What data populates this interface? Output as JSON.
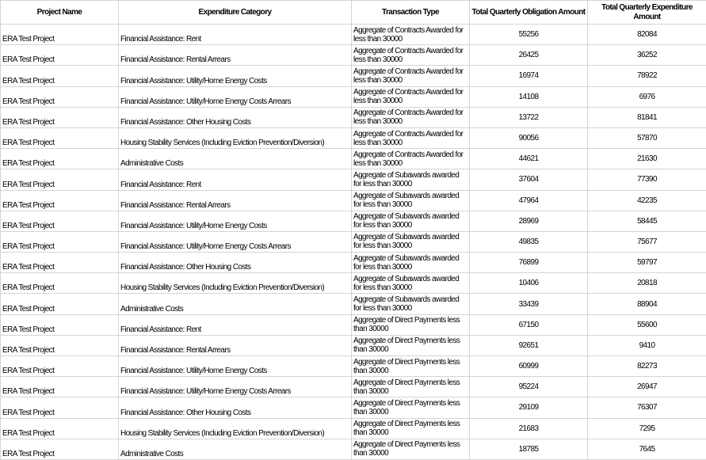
{
  "headers": [
    "Project Name",
    "Expenditure Category",
    "Transaction Type",
    "Total Quarterly Obligation Amount",
    "Total Quarterly Expenditure Amount"
  ],
  "rows": [
    [
      "ERA Test Project",
      "Financial Assistance: Rent",
      "Aggregate of Contracts Awarded for less than 30000",
      "55256",
      "82084"
    ],
    [
      "ERA Test Project",
      "Financial Assistance: Rental Arrears",
      "Aggregate of Contracts Awarded for less than 30000",
      "26425",
      "36252"
    ],
    [
      "ERA Test Project",
      "Financial Assistance: Utility/Home Energy Costs",
      "Aggregate of Contracts Awarded for less than 30000",
      "16974",
      "78922"
    ],
    [
      "ERA Test Project",
      "Financial Assistance: Utility/Home Energy Costs Arrears",
      "Aggregate of Contracts Awarded for less than 30000",
      "14108",
      "6976"
    ],
    [
      "ERA Test Project",
      "Financial Assistance: Other Housing Costs",
      "Aggregate of Contracts Awarded for less than 30000",
      "13722",
      "81841"
    ],
    [
      "ERA Test Project",
      "Housing Stability Services (Including Eviction Prevention/Diversion)",
      "Aggregate of Contracts Awarded for less than 30000",
      "90056",
      "57870"
    ],
    [
      "ERA Test Project",
      "Administrative Costs",
      "Aggregate of Contracts Awarded for less than 30000",
      "44621",
      "21630"
    ],
    [
      "ERA Test Project",
      "Financial Assistance: Rent",
      "Aggregate of Subawards awarded for less than 30000",
      "37604",
      "77390"
    ],
    [
      "ERA Test Project",
      "Financial Assistance: Rental Arrears",
      "Aggregate of Subawards awarded for less than 30000",
      "47964",
      "42235"
    ],
    [
      "ERA Test Project",
      "Financial Assistance: Utility/Home Energy Costs",
      "Aggregate of Subawards awarded for less than 30000",
      "28969",
      "58445"
    ],
    [
      "ERA Test Project",
      "Financial Assistance: Utility/Home Energy Costs Arrears",
      "Aggregate of Subawards awarded for less than 30000",
      "49835",
      "75677"
    ],
    [
      "ERA Test Project",
      "Financial Assistance: Other Housing Costs",
      "Aggregate of Subawards awarded for less than 30000",
      "76899",
      "59797"
    ],
    [
      "ERA Test Project",
      "Housing Stability Services (Including Eviction Prevention/Diversion)",
      "Aggregate of Subawards awarded for less than 30000",
      "10406",
      "20818"
    ],
    [
      "ERA Test Project",
      "Administrative Costs",
      "Aggregate of Subawards awarded for less than 30000",
      "33439",
      "88904"
    ],
    [
      "ERA Test Project",
      "Financial Assistance: Rent",
      "Aggregate of Direct Payments less than 30000",
      "67150",
      "55600"
    ],
    [
      "ERA Test Project",
      "Financial Assistance: Rental Arrears",
      "Aggregate of Direct Payments less than 30000",
      "92651",
      "9410"
    ],
    [
      "ERA Test Project",
      "Financial Assistance: Utility/Home Energy Costs",
      "Aggregate of Direct Payments less than 30000",
      "60999",
      "82273"
    ],
    [
      "ERA Test Project",
      "Financial Assistance: Utility/Home Energy Costs Arrears",
      "Aggregate of Direct Payments less than 30000",
      "95224",
      "26947"
    ],
    [
      "ERA Test Project",
      "Financial Assistance: Other Housing Costs",
      "Aggregate of Direct Payments less than 30000",
      "29109",
      "76307"
    ],
    [
      "ERA Test Project",
      "Housing Stability Services (Including Eviction Prevention/Diversion)",
      "Aggregate of Direct Payments less than 30000",
      "21683",
      "7295"
    ],
    [
      "ERA Test Project",
      "Administrative Costs",
      "Aggregate of Direct Payments less than 30000",
      "18785",
      "7645"
    ]
  ]
}
